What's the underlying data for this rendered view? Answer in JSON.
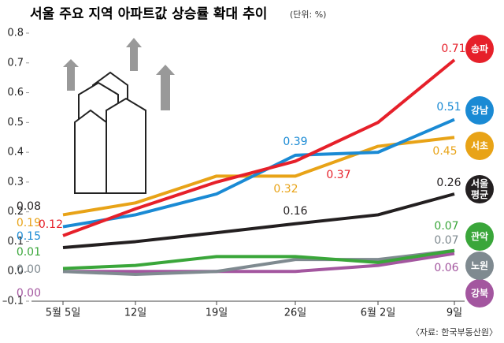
{
  "chart_data": {
    "type": "line",
    "title": "서울 주요 지역 아파트값 상승률 확대 추이",
    "unit": "(단위: %)",
    "source": "〈자료: 한국부동산원〉",
    "categories": [
      "5월 5일",
      "12일",
      "19일",
      "26일",
      "6월 2일",
      "9일"
    ],
    "ylim": [
      -0.1,
      0.8
    ],
    "yticks": [
      {
        "value": -0.1,
        "label": "–0.1"
      },
      {
        "value": 0,
        "label": "0.0"
      },
      0.1,
      0.2,
      0.3,
      0.4,
      0.5,
      0.6,
      0.7,
      0.8
    ],
    "series": [
      {
        "name": "강북",
        "color": "#a3569f",
        "values": [
          0.0,
          0.0,
          0.0,
          0.0,
          0.02,
          0.06
        ],
        "value_labels": [
          "0.00",
          null,
          null,
          null,
          null,
          "0.06"
        ]
      },
      {
        "name": "노원",
        "color": "#7f8a90",
        "values": [
          0.0,
          -0.01,
          0.0,
          0.04,
          0.04,
          0.07
        ],
        "value_labels": [
          "0.00",
          null,
          null,
          null,
          null,
          "0.07"
        ]
      },
      {
        "name": "관악",
        "color": "#3aa63a",
        "values": [
          0.01,
          0.02,
          0.05,
          0.05,
          0.03,
          0.07
        ],
        "value_labels": [
          "0.01",
          null,
          null,
          null,
          null,
          "0.07"
        ]
      },
      {
        "name": "서울 평균",
        "color": "#231f20",
        "values": [
          0.08,
          0.1,
          0.13,
          0.16,
          0.19,
          0.26
        ],
        "value_labels": [
          "0.08",
          null,
          null,
          "0.16",
          null,
          "0.26"
        ]
      },
      {
        "name": "서초",
        "color": "#e8a317",
        "values": [
          0.19,
          0.23,
          0.32,
          0.32,
          0.42,
          0.45
        ],
        "value_labels": [
          "0.19",
          null,
          null,
          "0.32",
          null,
          "0.45"
        ]
      },
      {
        "name": "강남",
        "color": "#1a8ad4",
        "values": [
          0.15,
          0.19,
          0.26,
          0.39,
          0.4,
          0.51
        ],
        "value_labels": [
          "0.15",
          null,
          null,
          "0.39",
          null,
          "0.51"
        ]
      },
      {
        "name": "송파",
        "color": "#e6202a",
        "values": [
          0.12,
          0.21,
          0.3,
          0.37,
          0.5,
          0.71
        ],
        "value_labels": [
          "0.12",
          null,
          null,
          "0.37",
          null,
          "0.71"
        ]
      }
    ]
  }
}
